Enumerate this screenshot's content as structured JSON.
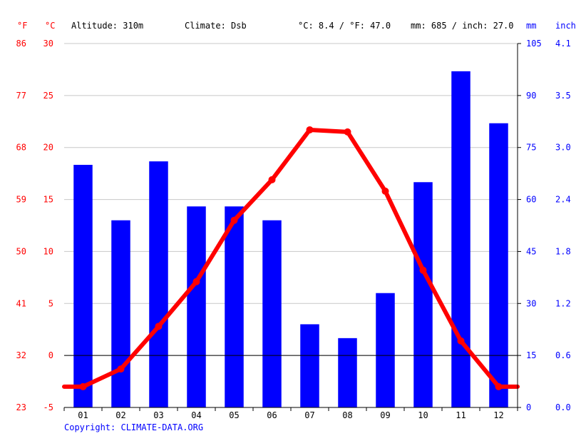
{
  "header": {
    "altitude": "Altitude: 310m",
    "climate": "Climate: Dsb",
    "temp_avg": "°C: 8.4 / °F: 47.0",
    "precip_avg": "mm: 685 / inch: 27.0"
  },
  "units": {
    "f": "°F",
    "c": "°C",
    "mm": "mm",
    "inch": "inch"
  },
  "copyright": "Copyright: CLIMATE-DATA.ORG",
  "colors": {
    "temperature": "#ff0000",
    "precipitation": "#0000ff",
    "grid": "#c8c8c8"
  },
  "chart_data": {
    "type": "bar+line",
    "categories": [
      "01",
      "02",
      "03",
      "04",
      "05",
      "06",
      "07",
      "08",
      "09",
      "10",
      "11",
      "12"
    ],
    "series": [
      {
        "type": "bar",
        "axis": "right",
        "unit": "mm",
        "values": [
          70,
          54,
          71,
          58,
          58,
          54,
          24,
          20,
          33,
          65,
          97,
          82
        ]
      },
      {
        "type": "line",
        "axis": "left",
        "unit": "°C",
        "values": [
          -3.0,
          -1.3,
          2.8,
          7.1,
          13.0,
          16.9,
          21.7,
          21.5,
          15.8,
          8.2,
          1.4,
          -3.0
        ]
      }
    ],
    "left_axis_c": {
      "range": [
        -5,
        30
      ],
      "ticks": [
        "-5",
        "0",
        "5",
        "10",
        "15",
        "20",
        "25",
        "30"
      ]
    },
    "left_axis_f": {
      "ticks": [
        "23",
        "32",
        "41",
        "50",
        "59",
        "68",
        "77",
        "86"
      ]
    },
    "right_axis_mm": {
      "range": [
        0,
        105
      ],
      "ticks": [
        "0",
        "15",
        "30",
        "45",
        "60",
        "75",
        "90",
        "105"
      ]
    },
    "right_axis_inch": {
      "ticks": [
        "0.0",
        "0.6",
        "1.2",
        "1.8",
        "2.4",
        "3.0",
        "3.5",
        "4.1"
      ]
    },
    "grid": true
  }
}
